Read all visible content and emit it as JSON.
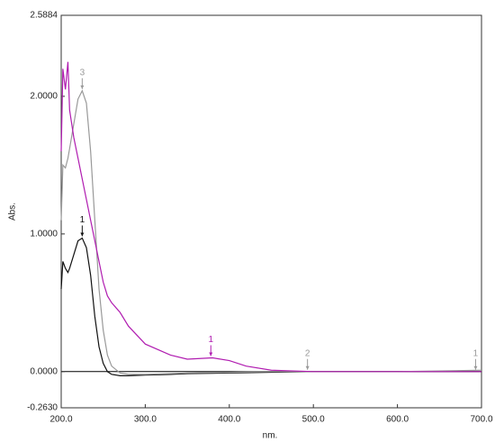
{
  "chart_data": {
    "type": "line",
    "x_label": "nm.",
    "y_label": "Abs.",
    "x": [
      200,
      202,
      205,
      208,
      210,
      215,
      220,
      225,
      230,
      235,
      240,
      245,
      250,
      255,
      260,
      270,
      280,
      300,
      330,
      350,
      380,
      400,
      420,
      450,
      500,
      600,
      700
    ],
    "series": [
      {
        "color": "#111111",
        "values": [
          0.6,
          0.8,
          0.75,
          0.72,
          0.75,
          0.85,
          0.95,
          0.97,
          0.9,
          0.7,
          0.4,
          0.18,
          0.06,
          0.0,
          -0.02,
          -0.03,
          -0.03,
          -0.025,
          -0.02,
          -0.015,
          -0.012,
          -0.01,
          -0.008,
          -0.005,
          0,
          0,
          0
        ]
      },
      {
        "color": "#999999",
        "values": [
          1.1,
          1.5,
          1.48,
          1.55,
          1.62,
          1.8,
          1.98,
          2.04,
          1.95,
          1.6,
          1.1,
          0.6,
          0.3,
          0.12,
          0.04,
          -0.01,
          -0.02,
          -0.02,
          -0.015,
          -0.01,
          -0.007,
          -0.005,
          -0.003,
          0,
          0,
          0,
          0.01
        ]
      },
      {
        "color": "#b01cb0",
        "values": [
          1.6,
          2.2,
          2.05,
          2.25,
          1.9,
          1.7,
          1.55,
          1.4,
          1.25,
          1.1,
          0.95,
          0.8,
          0.65,
          0.55,
          0.5,
          0.43,
          0.33,
          0.2,
          0.12,
          0.09,
          0.1,
          0.08,
          0.04,
          0.01,
          0,
          0,
          0
        ]
      }
    ],
    "annotations": [
      {
        "text": "1",
        "x": 225,
        "y": 0.97,
        "color": "#111111"
      },
      {
        "text": "3",
        "x": 225,
        "y": 2.04,
        "color": "#999999"
      },
      {
        "text": "1",
        "x": 378,
        "y": 0.1,
        "color": "#b01cb0"
      },
      {
        "text": "2",
        "x": 493,
        "y": 0,
        "color": "#999999"
      },
      {
        "text": "1",
        "x": 693,
        "y": 0,
        "color": "#999999"
      }
    ],
    "xlim": [
      200,
      700
    ],
    "ylim": [
      -0.263,
      2.5884
    ],
    "xticks": [
      {
        "value": 200,
        "label": "200.0"
      },
      {
        "value": 300,
        "label": "300.0"
      },
      {
        "value": 400,
        "label": "400.0"
      },
      {
        "value": 500,
        "label": "500.0"
      },
      {
        "value": 600,
        "label": "600.0"
      },
      {
        "value": 700,
        "label": "700.0"
      }
    ],
    "yticks": [
      {
        "value": -0.263,
        "label": "-0.2630"
      },
      {
        "value": 0,
        "label": "0.0000"
      },
      {
        "value": 1,
        "label": "1.0000"
      },
      {
        "value": 2,
        "label": "2.0000"
      },
      {
        "value": 2.5884,
        "label": "2.5884"
      }
    ]
  }
}
